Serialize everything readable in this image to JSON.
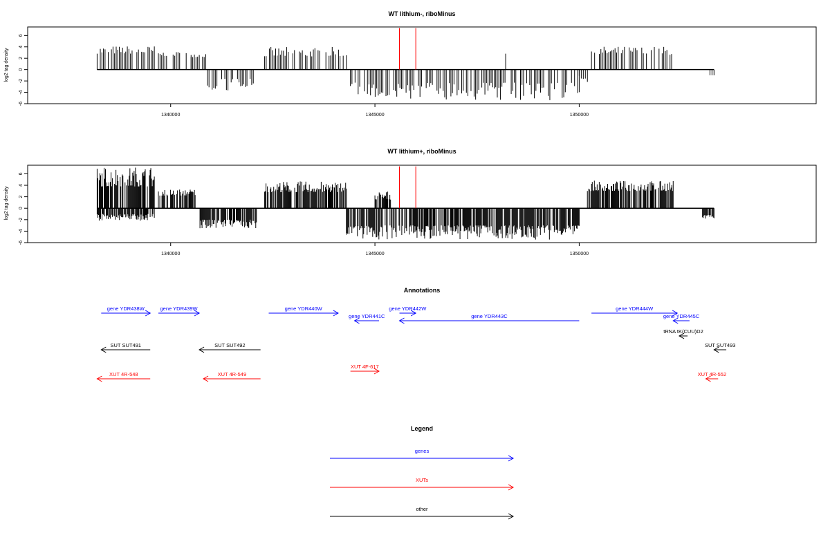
{
  "colors": {
    "genes": "#0000ff",
    "xuts": "#ff0000",
    "other": "#000000",
    "marker": "#ff0000",
    "axis": "#000000"
  },
  "chart_data": [
    {
      "type": "bar",
      "title": "WT lithium-, riboMinus",
      "ylabel": "log2 tag density",
      "yticks": [
        6,
        4,
        2,
        0,
        -2,
        -4,
        -6
      ],
      "ylim": [
        -6,
        7.5
      ],
      "xlim": [
        1336500,
        1355800
      ],
      "xticks": [
        1340000,
        1345000,
        1350000
      ],
      "xtick_labels": [
        "1340000",
        "1345000",
        "1350000"
      ],
      "markers": [
        1345600,
        1346000
      ],
      "series": [
        {
          "values_from": 1338200,
          "values_to": 1353300,
          "segments_plus": [
            [
              1338200,
              1339600,
              2.8,
              4.2
            ],
            [
              1339700,
              1340500,
              2.4,
              3.2
            ],
            [
              1340500,
              1340900,
              2.2,
              3.1
            ],
            [
              1342300,
              1344300,
              2.3,
              4.0
            ],
            [
              1350300,
              1352300,
              2.6,
              4.1
            ],
            [
              1348200,
              1348300,
              2.8,
              2.8
            ]
          ],
          "segments_minus": [
            [
              1340900,
              1342100,
              1.6,
              3.8
            ],
            [
              1344400,
              1350000,
              2.3,
              5.4
            ],
            [
              1350000,
              1350200,
              1.0,
              2.5
            ],
            [
              1353200,
              1353300,
              1.0,
              1.0
            ]
          ]
        }
      ]
    },
    {
      "type": "bar",
      "title": "WT lithium+, riboMinus",
      "ylabel": "log2 tag density",
      "yticks": [
        6,
        4,
        2,
        0,
        -2,
        -4,
        -6
      ],
      "ylim": [
        -6,
        7.5
      ],
      "xlim": [
        1336500,
        1355800
      ],
      "xticks": [
        1340000,
        1345000,
        1350000
      ],
      "xtick_labels": [
        "1340000",
        "1345000",
        "1350000"
      ],
      "markers": [
        1345600,
        1346000
      ],
      "series": [
        {
          "values_from": 1338200,
          "values_to": 1353300,
          "segments_plus": [
            [
              1338200,
              1339600,
              3.8,
              7.3
            ],
            [
              1339700,
              1340600,
              2.2,
              3.4
            ],
            [
              1342300,
              1344300,
              2.8,
              4.7
            ],
            [
              1345000,
              1345400,
              1.5,
              3.0
            ],
            [
              1350200,
              1352300,
              3.0,
              4.8
            ]
          ],
          "segments_minus": [
            [
              1338200,
              1339600,
              1.0,
              2.2
            ],
            [
              1340700,
              1342100,
              2.0,
              3.5
            ],
            [
              1344300,
              1350000,
              3.0,
              5.5
            ],
            [
              1353000,
              1353300,
              1.2,
              1.8
            ]
          ]
        }
      ]
    }
  ],
  "annotations": {
    "title": "Annotations",
    "items": [
      {
        "label": "gene YDR438W",
        "type": "gene",
        "start": 1338300,
        "end": 1339500,
        "strand": "+",
        "row": 0
      },
      {
        "label": "gene YDR439W",
        "type": "gene",
        "start": 1339700,
        "end": 1340700,
        "strand": "+",
        "row": 0
      },
      {
        "label": "gene YDR440W",
        "type": "gene",
        "start": 1342400,
        "end": 1344100,
        "strand": "+",
        "row": 0
      },
      {
        "label": "gene YDR441C",
        "type": "gene",
        "start": 1344500,
        "end": 1345100,
        "strand": "-",
        "row": 1
      },
      {
        "label": "gene YDR442W",
        "type": "gene",
        "start": 1345600,
        "end": 1346000,
        "strand": "+",
        "row": 0
      },
      {
        "label": "gene YDR443C",
        "type": "gene",
        "start": 1345600,
        "end": 1350000,
        "strand": "-",
        "row": 1
      },
      {
        "label": "gene YDR444W",
        "type": "gene",
        "start": 1350300,
        "end": 1352400,
        "strand": "+",
        "row": 0
      },
      {
        "label": "gene YDR445C",
        "type": "gene",
        "start": 1352300,
        "end": 1352700,
        "strand": "-",
        "row": 1
      },
      {
        "label": "tRNA tK(CUU)D2",
        "type": "other",
        "start": 1352500,
        "end": 1352600,
        "strand": "-",
        "row": 2
      },
      {
        "label": "SUT SUT491",
        "type": "other",
        "start": 1338300,
        "end": 1339500,
        "strand": "-",
        "row": 3
      },
      {
        "label": "SUT SUT492",
        "type": "other",
        "start": 1340700,
        "end": 1342200,
        "strand": "-",
        "row": 3
      },
      {
        "label": "SUT SUT493",
        "type": "other",
        "start": 1353300,
        "end": 1353600,
        "strand": "-",
        "row": 3
      },
      {
        "label": "XUT 4R-548",
        "type": "xut",
        "start": 1338200,
        "end": 1339500,
        "strand": "-",
        "row": 5
      },
      {
        "label": "XUT 4R-549",
        "type": "xut",
        "start": 1340800,
        "end": 1342200,
        "strand": "-",
        "row": 5
      },
      {
        "label": "XUT 4F-617",
        "type": "xut",
        "start": 1344400,
        "end": 1345100,
        "strand": "+",
        "row": 4
      },
      {
        "label": "XUT 4R-552",
        "type": "xut",
        "start": 1353100,
        "end": 1353400,
        "strand": "-",
        "row": 5
      }
    ]
  },
  "legend": {
    "title": "Legend",
    "items": [
      {
        "label": "genes",
        "type": "gene"
      },
      {
        "label": "XUTs",
        "type": "xut"
      },
      {
        "label": "other",
        "type": "other"
      }
    ]
  }
}
